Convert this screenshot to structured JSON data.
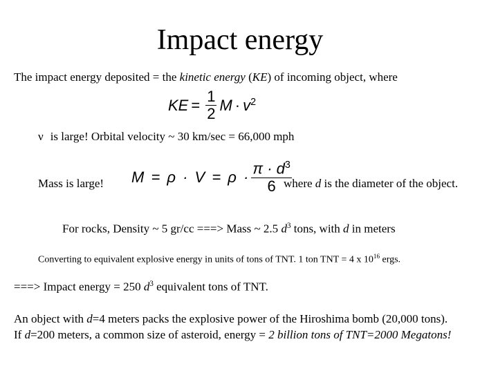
{
  "title": "Impact energy",
  "intro": [
    "The impact energy deposited = the ",
    "kinetic energy",
    " (",
    "KE",
    ") of incoming object, where"
  ],
  "ke_equation": [
    "KE",
    "=",
    "1",
    "2",
    "M",
    "·",
    "v",
    "2"
  ],
  "velocity": [
    "ν",
    "is large! Orbital velocity ~ 30 km/sec = 66,000 mph"
  ],
  "mass": [
    "Mass is large!",
    "M = ρ · V = ρ ·",
    "π · d",
    "3",
    "6",
    "where ",
    "d",
    " is the diameter of the object."
  ],
  "rocks": [
    "For rocks, Density ~ 5 gr/cc ===> Mass ~ 2.5 ",
    "d",
    "3",
    " tons, with ",
    "d",
    " in meters"
  ],
  "conversion": [
    "Converting to equivalent explosive energy in units of tons of TNT. 1 ton TNT = 4 x 10",
    "16",
    " ergs."
  ],
  "energy": [
    "===> Impact energy = 250 ",
    "d",
    "3",
    " equivalent tons of TNT."
  ],
  "example1": [
    "An object with ",
    "d",
    "=4 meters packs the explosive power of the Hiroshima bomb (20,000 tons)."
  ],
  "example2": [
    "If ",
    "d",
    "=200 meters, a common size of asteroid, energy = ",
    "2 billion tons of TNT=2000 Megatons!"
  ]
}
